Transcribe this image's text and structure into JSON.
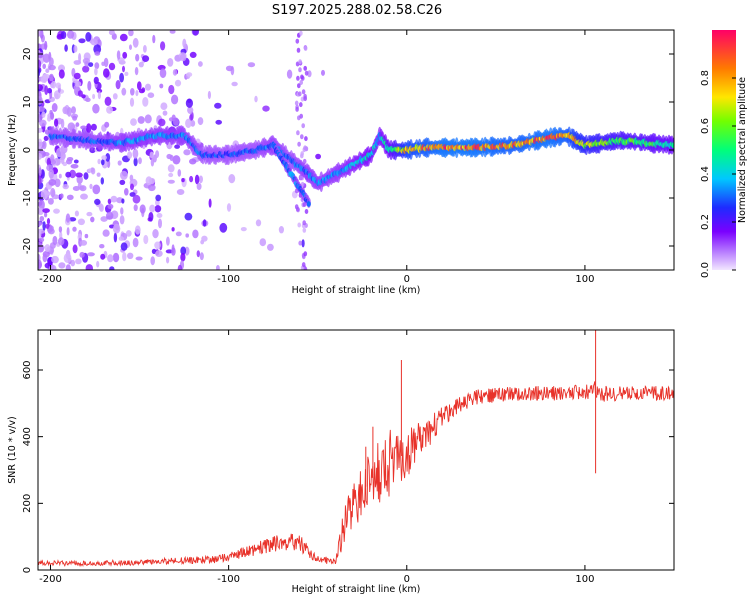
{
  "title": "S197.2025.288.02.58.C26",
  "chart_data": [
    {
      "type": "heatmap",
      "name": "spectrogram",
      "xlabel": "Height of straight line (km)",
      "ylabel": "Frequency (Hz)",
      "xlim": [
        -207,
        150
      ],
      "ylim": [
        -25,
        25
      ],
      "xticks": [
        -200,
        -100,
        0,
        100
      ],
      "xtick_labels": [
        "-200",
        "-100",
        "0",
        "100"
      ],
      "yticks": [
        -20,
        -10,
        0,
        10,
        20
      ],
      "ytick_labels": [
        "-20",
        "-10",
        "0",
        "10",
        "20"
      ],
      "colorbar": {
        "label": "Normalized spectral amplitude",
        "range": [
          0,
          1
        ],
        "ticks": [
          0.0,
          0.2,
          0.4,
          0.6,
          0.8
        ],
        "tick_labels": [
          "0.0",
          "0.2",
          "0.4",
          "0.6",
          "0.8"
        ]
      },
      "ridge": {
        "x": [
          -200,
          -180,
          -160,
          -140,
          -125,
          -115,
          -100,
          -85,
          -75,
          -65,
          -55,
          -50,
          -40,
          -30,
          -20,
          -15,
          -10,
          0,
          10,
          20,
          40,
          60,
          80,
          90,
          100,
          120,
          150
        ],
        "y": [
          3,
          2,
          1.5,
          3,
          3,
          -1,
          -1,
          0,
          1,
          -2,
          -5,
          -7,
          -5,
          -3,
          -1,
          3,
          0,
          0,
          0.5,
          0.5,
          0.5,
          1,
          2.5,
          3,
          1,
          2,
          1
        ],
        "intensity": [
          0.3,
          0.3,
          0.35,
          0.35,
          0.35,
          0.3,
          0.3,
          0.3,
          0.35,
          0.3,
          0.35,
          0.35,
          0.35,
          0.4,
          0.45,
          0.4,
          0.5,
          0.8,
          0.85,
          0.9,
          0.9,
          0.85,
          0.9,
          0.85,
          0.7,
          0.6,
          0.5
        ]
      },
      "branch": {
        "x": [
          -75,
          -70,
          -65,
          -60,
          -55
        ],
        "y": [
          1,
          -2,
          -5,
          -8,
          -11
        ],
        "intensity": [
          0.3,
          0.3,
          0.35,
          0.35,
          0.3
        ]
      }
    },
    {
      "type": "line",
      "name": "snr",
      "xlabel": "Height of straight line (km)",
      "ylabel": "SNR (10 * v/v)",
      "xlim": [
        -207,
        150
      ],
      "ylim": [
        0,
        720
      ],
      "xticks": [
        -200,
        -100,
        0,
        100
      ],
      "xtick_labels": [
        "-200",
        "-100",
        "0",
        "100"
      ],
      "yticks": [
        0,
        200,
        400,
        600
      ],
      "ytick_labels": [
        "0",
        "200",
        "400",
        "600"
      ],
      "color": "#e8322a",
      "envelope": {
        "x": [
          -207,
          -150,
          -130,
          -110,
          -100,
          -90,
          -80,
          -70,
          -60,
          -50,
          -40,
          -35,
          -30,
          -25,
          -20,
          -15,
          -10,
          -5,
          0,
          5,
          10,
          20,
          30,
          40,
          60,
          80,
          100,
          105,
          110,
          120,
          150
        ],
        "y": [
          20,
          22,
          28,
          30,
          40,
          55,
          70,
          85,
          80,
          30,
          30,
          130,
          200,
          230,
          280,
          300,
          320,
          330,
          360,
          380,
          400,
          460,
          500,
          520,
          530,
          530,
          535,
          540,
          530,
          530,
          530
        ],
        "noise": [
          8,
          8,
          10,
          12,
          14,
          16,
          22,
          28,
          25,
          12,
          12,
          60,
          70,
          80,
          90,
          100,
          100,
          100,
          90,
          60,
          50,
          30,
          25,
          22,
          22,
          22,
          22,
          30,
          25,
          22,
          22
        ]
      },
      "spikes": [
        {
          "x": -23,
          "y": 370
        },
        {
          "x": -19,
          "y": 430
        },
        {
          "x": -3,
          "y": 630
        },
        {
          "x": 106,
          "y": 720
        },
        {
          "x": 106,
          "y": 290
        }
      ]
    }
  ]
}
